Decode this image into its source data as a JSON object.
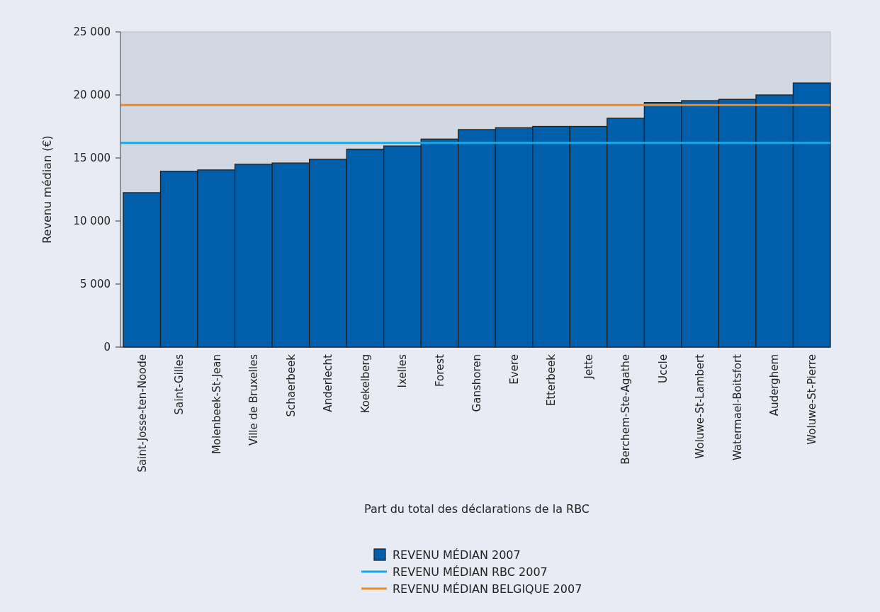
{
  "chart_data": {
    "type": "bar",
    "xlabel": "Part du total des déclarations de la RBC",
    "ylabel": "Revenu médian (€)",
    "categories": [
      "Saint-Josse-ten-Noode",
      "Saint-Gilles",
      "Molenbeek-St-Jean",
      "Ville de Bruxelles",
      "Schaerbeek",
      "Anderlecht",
      "Koekelberg",
      "Ixelles",
      "Forest",
      "Ganshoren",
      "Evere",
      "Etterbeek",
      "Jette",
      "Berchem-Ste-Agathe",
      "Uccle",
      "Woluwe-St-Lambert",
      "Watermael-Boitsfort",
      "Auderghem",
      "Woluwe-St-Pierre"
    ],
    "series": [
      {
        "name": "REVENU MÉDIAN 2007",
        "color": "#005eab",
        "values": [
          12250,
          13950,
          14050,
          14500,
          14600,
          14900,
          15700,
          15950,
          16500,
          17250,
          17400,
          17500,
          17500,
          18150,
          19400,
          19550,
          19650,
          20000,
          20950
        ]
      }
    ],
    "ylim": [
      0,
      25000
    ],
    "yticks": [
      {
        "value": 0,
        "label": "0"
      },
      {
        "value": 5000,
        "label": "5 000"
      },
      {
        "value": 10000,
        "label": "10 000"
      },
      {
        "value": 15000,
        "label": "15 000"
      },
      {
        "value": 20000,
        "label": "20 000"
      },
      {
        "value": 25000,
        "label": "25 000"
      }
    ],
    "ref_lines": [
      {
        "axis": "y",
        "value": 16200,
        "label": "REVENU MÉDIAN RBC 2007",
        "color": "#1aa7e6"
      },
      {
        "axis": "y",
        "value": 19200,
        "label": "REVENU MÉDIAN BELGIQUE 2007",
        "color": "#f08a24"
      }
    ],
    "legend": "bottom",
    "grid": false
  }
}
